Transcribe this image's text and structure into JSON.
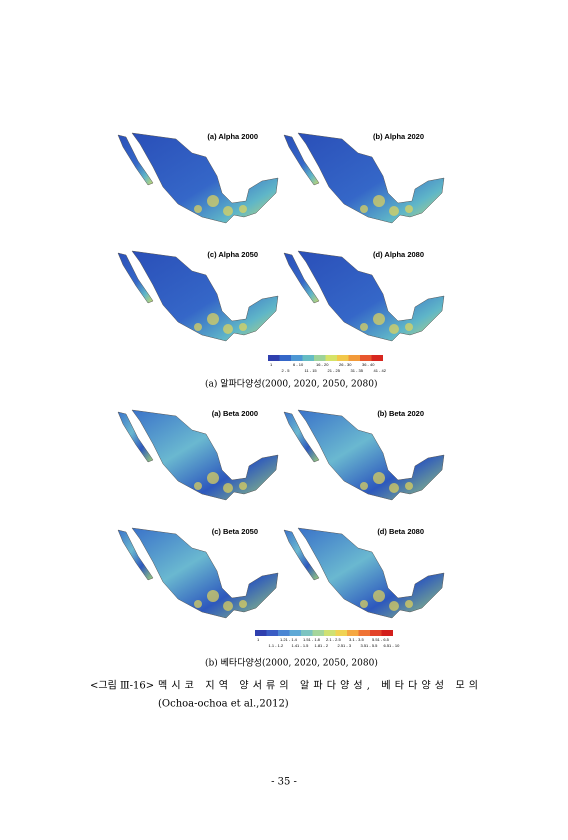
{
  "figures": [
    {
      "panels": [
        "(a) Alpha 2000",
        "(b) Alpha 2020",
        "(c) Alpha 2050",
        "(d) Alpha 2080"
      ],
      "legend": {
        "top": [
          "1",
          "6 - 10",
          "16 - 20",
          "26 - 30",
          "36 - 40"
        ],
        "bottom": [
          "2 - 5",
          "11 - 15",
          "21 - 25",
          "31 - 35",
          "41 - 42"
        ]
      },
      "caption": "(a) 알파다양성(2000, 2020, 2050, 2080)"
    },
    {
      "panels": [
        "(a) Beta 2000",
        "(b) Beta 2020",
        "(c) Beta 2050",
        "(d) Beta 2080"
      ],
      "legend": {
        "top": [
          "1",
          "1.21 - 1.4",
          "1.51 - 1.8",
          "2.1 - 2.5",
          "3.1 - 3.5",
          "5.51 - 6.5"
        ],
        "bottom": [
          "1.1 - 1.2",
          "1.41 - 1.5",
          "1.81 - 2",
          "2.51 - 3",
          "3.51 - 5.5",
          "6.51 - 10"
        ]
      },
      "caption": "(b) 베타다양성(2000, 2020, 2050, 2080)"
    }
  ],
  "figure_caption": {
    "label": "<그림 Ⅲ-16>",
    "text": "멕시코 지역 양서류의 알파다양성, 베타다양성 모의",
    "citation": "(Ochoa-ochoa et al.,2012)"
  },
  "page_number": "- 35 -"
}
